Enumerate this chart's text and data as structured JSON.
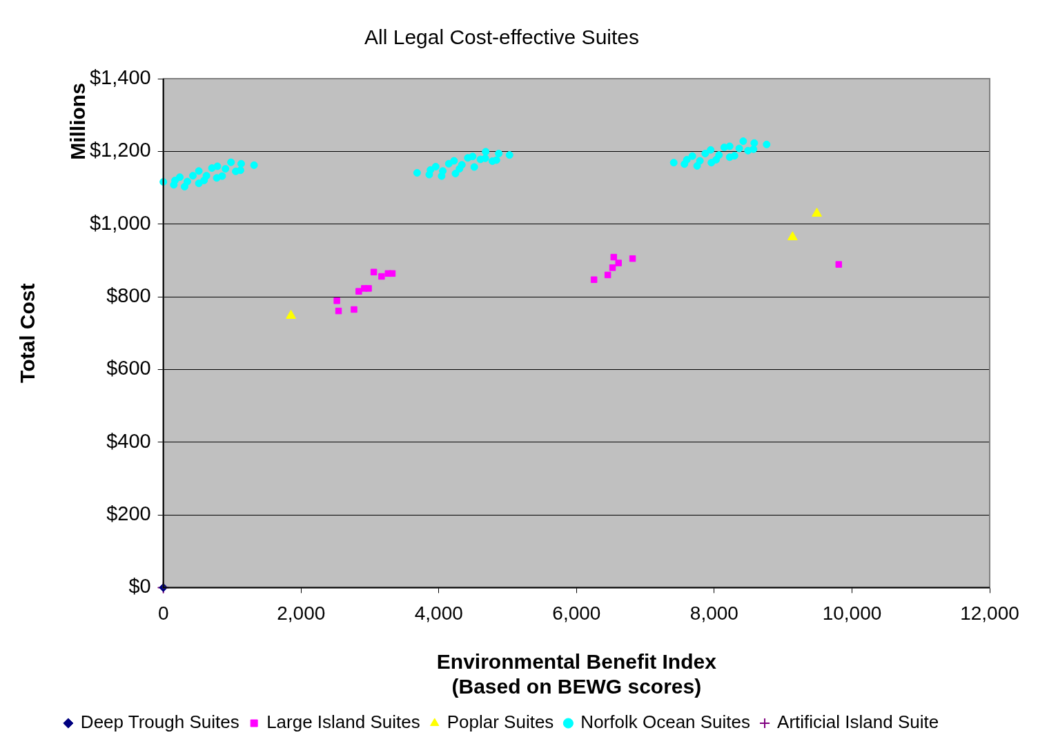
{
  "chart_data": {
    "type": "scatter",
    "title": "All Legal Cost-effective Suites",
    "xlabel": "Environmental Benefit Index\n(Based on BEWG scores)",
    "ylabel": "Total Cost",
    "annotations": [
      "Millions"
    ],
    "xlim": [
      0,
      12000
    ],
    "xticks": [
      0,
      {
        "value": 2000,
        "label": "2,000"
      },
      {
        "value": 4000,
        "label": "4,000"
      },
      {
        "value": 6000,
        "label": "6,000"
      },
      {
        "value": 8000,
        "label": "8,000"
      },
      {
        "value": 10000,
        "label": "10,000"
      },
      {
        "value": 12000,
        "label": "12,000"
      }
    ],
    "ylim": [
      0,
      1400
    ],
    "yticks": [
      {
        "value": 0,
        "label": "$0"
      },
      {
        "value": 200,
        "label": "$200"
      },
      {
        "value": 400,
        "label": "$400"
      },
      {
        "value": 600,
        "label": "$600"
      },
      {
        "value": 800,
        "label": "$800"
      },
      {
        "value": 1000,
        "label": "$1,000"
      },
      {
        "value": 1200,
        "label": "$1,200"
      },
      {
        "value": 1400,
        "label": "$1,400"
      }
    ],
    "grid": "y",
    "legend": "bottom",
    "series": [
      {
        "name": "Deep Trough Suites",
        "color": "#000080",
        "marker": "diamond",
        "x": [
          0
        ],
        "values": [
          0
        ]
      },
      {
        "name": "Large Island Suites",
        "color": "#ff00ff",
        "marker": "square",
        "x": [
          2520,
          2544,
          2769,
          2838,
          2918,
          2980,
          3056,
          3169,
          3263,
          3325,
          6254,
          6454,
          6523,
          6541,
          6610,
          6814,
          9808
        ],
        "values": [
          789,
          761,
          765,
          815,
          823,
          823,
          868,
          856,
          864,
          864,
          847,
          860,
          880,
          909,
          893,
          905,
          889
        ]
      },
      {
        "name": "Poplar Suites",
        "color": "#ffff00",
        "marker": "triangle",
        "x": [
          1853,
          9137,
          9490
        ],
        "values": [
          748,
          964,
          1029
        ]
      },
      {
        "name": "Norfolk Ocean Suites",
        "color": "#00ffff",
        "marker": "circle",
        "x": [
          0,
          152,
          169,
          239,
          308,
          349,
          429,
          515,
          515,
          591,
          626,
          705,
          785,
          775,
          854,
          902,
          982,
          1051,
          1120,
          1130,
          1317,
          3685,
          3861,
          3879,
          3955,
          4041,
          4058,
          4145,
          4221,
          4242,
          4300,
          4335,
          4421,
          4491,
          4515,
          4605,
          4681,
          4674,
          4778,
          4837,
          4871,
          5027,
          7412,
          7567,
          7602,
          7682,
          7751,
          7792,
          7869,
          7948,
          7958,
          8027,
          8069,
          8145,
          8224,
          8224,
          8294,
          8363,
          8421,
          8490,
          8570,
          8581,
          8761
        ],
        "values": [
          1116,
          1108,
          1120,
          1129,
          1103,
          1117,
          1133,
          1112,
          1146,
          1120,
          1133,
          1154,
          1159,
          1127,
          1132,
          1152,
          1170,
          1145,
          1148,
          1166,
          1162,
          1141,
          1136,
          1149,
          1158,
          1132,
          1146,
          1166,
          1174,
          1139,
          1152,
          1163,
          1182,
          1186,
          1157,
          1178,
          1199,
          1181,
          1173,
          1176,
          1194,
          1190,
          1169,
          1165,
          1177,
          1187,
          1160,
          1174,
          1194,
          1204,
          1169,
          1177,
          1190,
          1211,
          1214,
          1184,
          1188,
          1208,
          1228,
          1202,
          1206,
          1223,
          1219
        ]
      },
      {
        "name": "Artificial Island Suite",
        "color": "#800080",
        "marker": "cross",
        "x": [
          0
        ],
        "values": [
          0
        ]
      }
    ]
  }
}
